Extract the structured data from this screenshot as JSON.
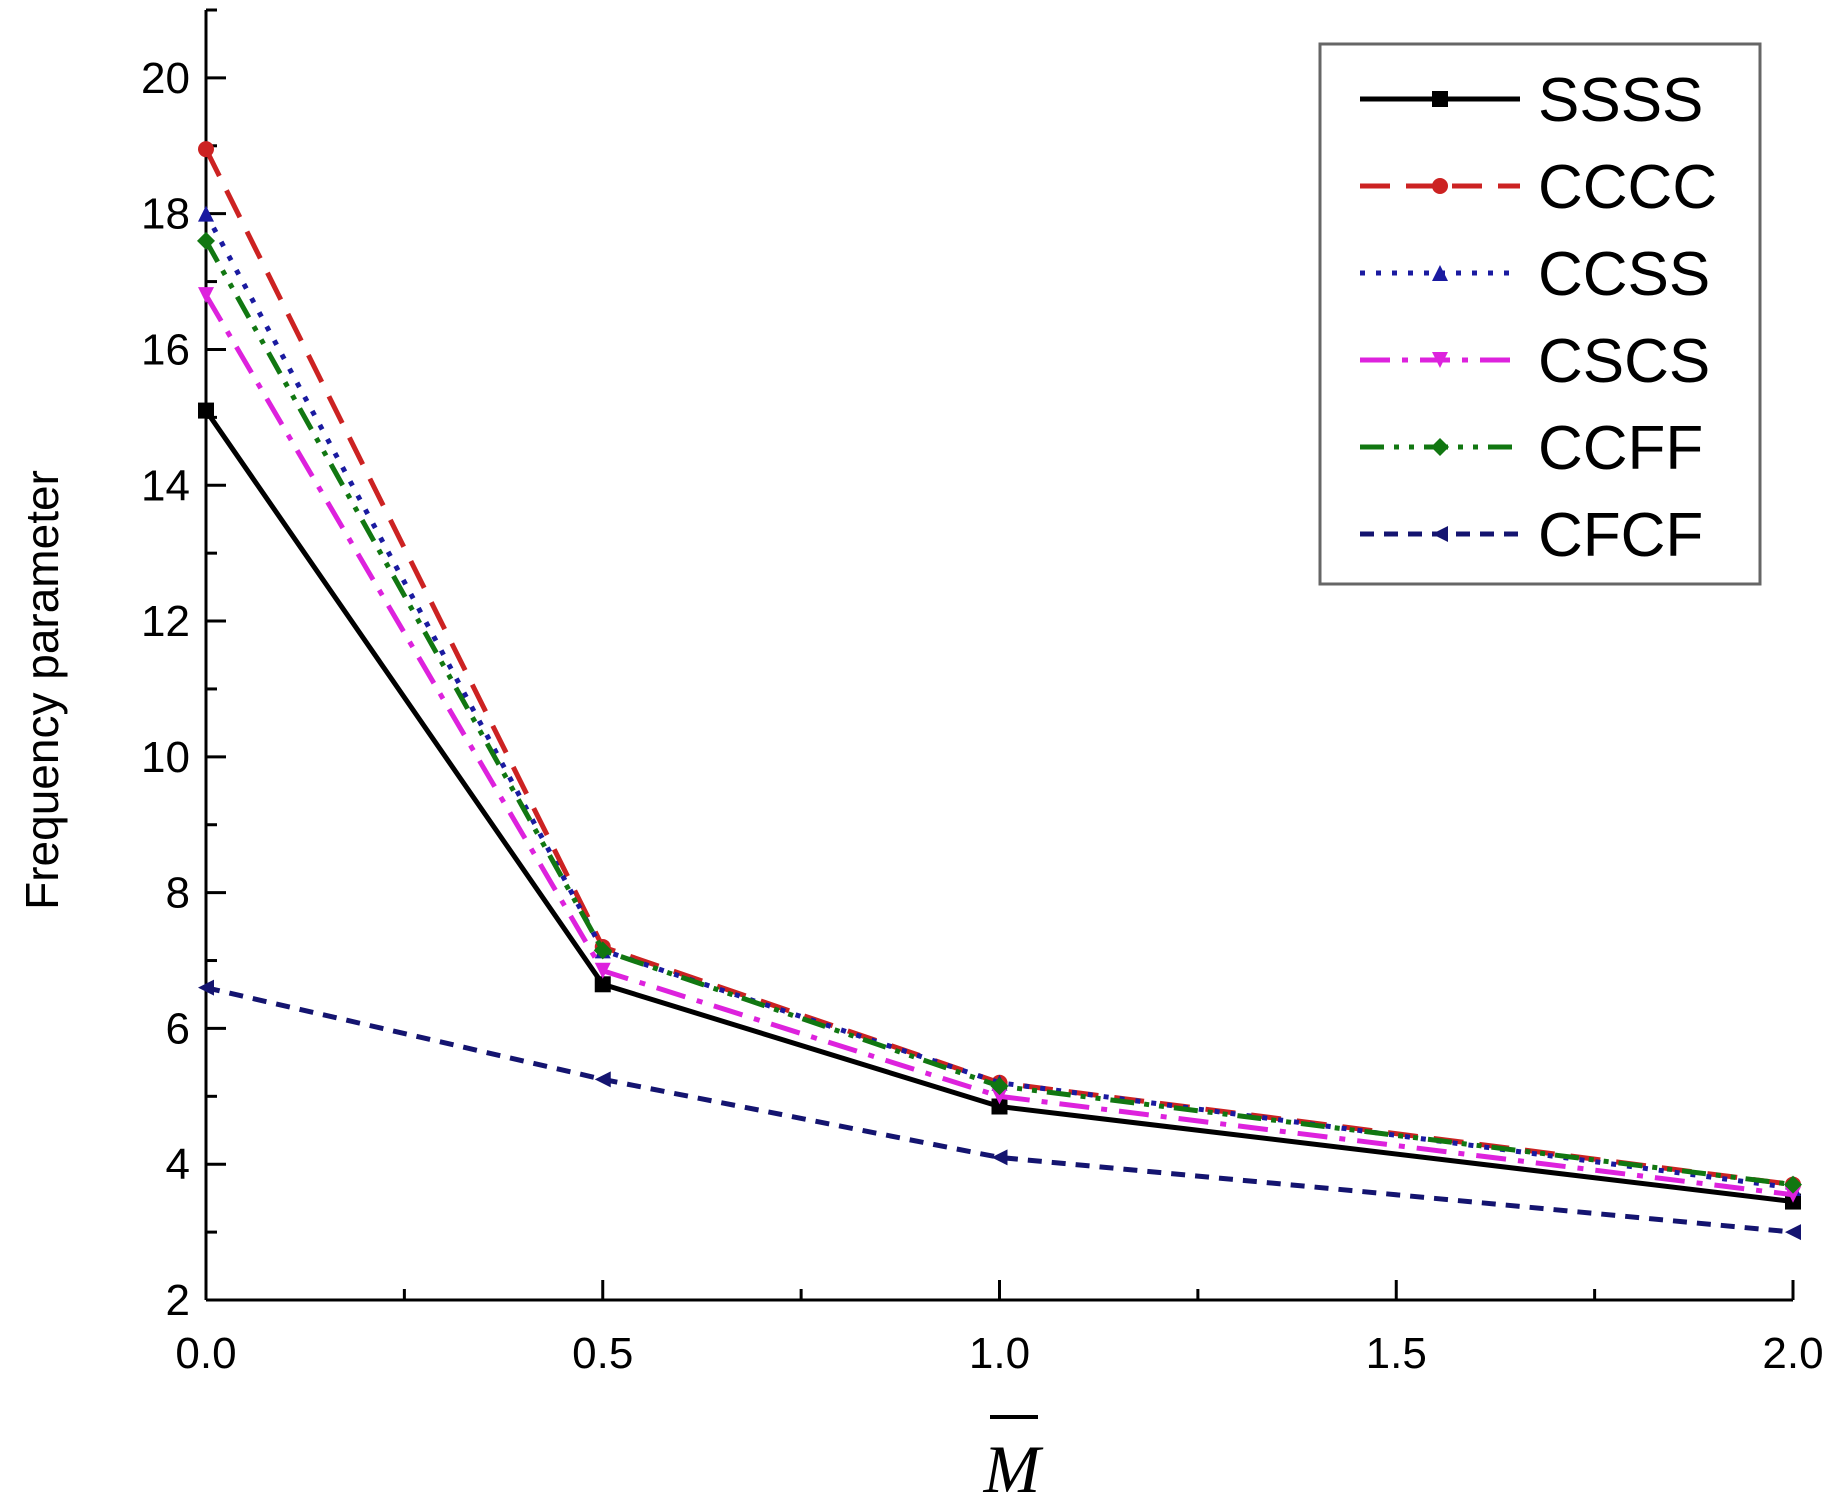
{
  "chart_data": {
    "type": "line",
    "title": "",
    "xlabel": "M",
    "xlabel_overbar": true,
    "ylabel": "Frequency parameter",
    "xlim": [
      0.0,
      2.0
    ],
    "ylim": [
      2,
      21
    ],
    "grid": false,
    "legend_position": "top-right",
    "x": [
      0.0,
      0.5,
      1.0,
      2.0
    ],
    "x_ticks": [
      "0.0",
      "0.5",
      "1.0",
      "1.5",
      "2.0"
    ],
    "x_tick_values": [
      0.0,
      0.5,
      1.0,
      1.5,
      2.0
    ],
    "y_ticks": [
      "2",
      "4",
      "6",
      "8",
      "10",
      "12",
      "14",
      "16",
      "18",
      "20"
    ],
    "y_tick_values": [
      2,
      4,
      6,
      8,
      10,
      12,
      14,
      16,
      18,
      20
    ],
    "series": [
      {
        "name": "SSSS",
        "values": [
          15.1,
          6.65,
          4.85,
          3.45
        ],
        "color": "#000000",
        "dash": "solid",
        "marker": "square"
      },
      {
        "name": "CCCC",
        "values": [
          18.95,
          7.2,
          5.2,
          3.7
        ],
        "color": "#cc2222",
        "dash": "dash",
        "marker": "circle"
      },
      {
        "name": "CCSS",
        "values": [
          18.0,
          7.15,
          5.2,
          3.65
        ],
        "color": "#1a1aa0",
        "dash": "dot",
        "marker": "triangle-up"
      },
      {
        "name": "CSCS",
        "values": [
          16.8,
          6.85,
          5.0,
          3.55
        ],
        "color": "#dd22dd",
        "dash": "dashdot",
        "marker": "triangle-down"
      },
      {
        "name": "CCFF",
        "values": [
          17.6,
          7.15,
          5.15,
          3.7
        ],
        "color": "#117711",
        "dash": "dashdotdot",
        "marker": "diamond"
      },
      {
        "name": "CFCF",
        "values": [
          6.6,
          5.25,
          4.1,
          3.0
        ],
        "color": "#141470",
        "dash": "shortdash",
        "marker": "triangle-left"
      }
    ]
  }
}
